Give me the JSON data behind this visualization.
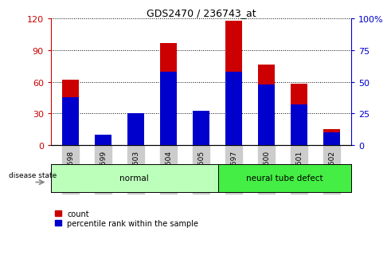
{
  "title": "GDS2470 / 236743_at",
  "samples": [
    "GSM94598",
    "GSM94599",
    "GSM94603",
    "GSM94604",
    "GSM94605",
    "GSM94597",
    "GSM94600",
    "GSM94601",
    "GSM94602"
  ],
  "count_values": [
    62,
    5,
    27,
    97,
    26,
    118,
    76,
    58,
    15
  ],
  "percentile_values": [
    38,
    8,
    25,
    58,
    27,
    58,
    48,
    32,
    10
  ],
  "groups": [
    {
      "label": "normal",
      "indices": [
        0,
        4
      ],
      "color": "#bbffbb"
    },
    {
      "label": "neural tube defect",
      "indices": [
        5,
        8
      ],
      "color": "#44ee44"
    }
  ],
  "bar_color_red": "#cc0000",
  "bar_color_blue": "#0000cc",
  "bar_width": 0.5,
  "ylim_left": [
    0,
    120
  ],
  "ylim_right": [
    0,
    100
  ],
  "yticks_left": [
    0,
    30,
    60,
    90,
    120
  ],
  "yticks_right": [
    0,
    25,
    50,
    75,
    100
  ],
  "background_color": "#ffffff",
  "plot_bg_color": "#ffffff",
  "grid_color": "#000000",
  "legend_labels": [
    "count",
    "percentile rank within the sample"
  ],
  "disease_state_label": "disease state",
  "tick_bg_color": "#cccccc"
}
